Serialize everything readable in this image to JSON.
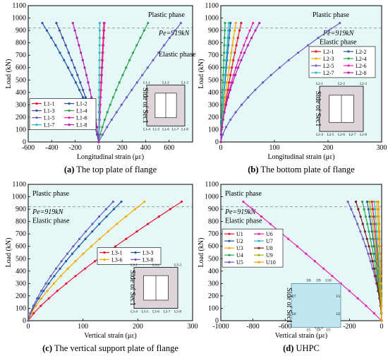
{
  "colors": {
    "L1": [
      "#e8112d",
      "#1f57a6",
      "#3a4ca0",
      "#2aa54e",
      "#6a5ac0",
      "#e81faa",
      "#29b8c0",
      "#b11fb0"
    ],
    "L2": [
      "#e8112d",
      "#1f57a6",
      "#f5a800",
      "#2aa54e",
      "#6a5ac0",
      "#e81faa",
      "#29b8c0",
      "#b11fb0"
    ],
    "L3": [
      "#e8112d",
      "#1f57a6",
      "#f5a800",
      "#6a5ac0"
    ],
    "U": [
      "#e8112d",
      "#1f57a6",
      "#f5a800",
      "#2aa54e",
      "#6a5ac0",
      "#e81faa",
      "#29b8c0",
      "#7a1f1f",
      "#a1b000",
      "#e8a000"
    ]
  },
  "chart_data": [
    {
      "type": "line",
      "panel_id": "a",
      "caption_letter": "(a)",
      "caption_text": "The top plate of flange",
      "xlabel": "Longitudinal strain (με)",
      "ylabel": "Load (kN)",
      "xlim": [
        -600,
        800
      ],
      "ylim": [
        0,
        1100
      ],
      "xticks": [
        -600,
        -400,
        -200,
        0,
        200,
        400,
        600
      ],
      "yticks": [
        0,
        100,
        200,
        300,
        400,
        500,
        600,
        700,
        800,
        900,
        1000,
        1100
      ],
      "pe_line": 919,
      "annotations": {
        "plastic": "Plastic phase",
        "pe": "Pe=919kN",
        "elastic": "Elastic phase"
      },
      "legend": [
        "L1-1",
        "L1-2",
        "L1-3",
        "L1-4",
        "L1-5",
        "L1-6",
        "L1-7",
        "L1-8"
      ],
      "inset": {
        "side_label": "Side of Sec1",
        "top_labels": [
          "L1-1",
          "L1-2",
          "L1-3"
        ],
        "bottom_labels": [
          "L1-4",
          "L1-5",
          "L1-6",
          "L1-7",
          "L1-8"
        ]
      },
      "series": [
        {
          "name": "L1-1",
          "end_x": 45
        },
        {
          "name": "L1-2",
          "end_x": -480
        },
        {
          "name": "L1-3",
          "end_x": -360
        },
        {
          "name": "L1-4",
          "end_x": 420
        },
        {
          "name": "L1-5",
          "end_x": 700
        },
        {
          "name": "L1-6",
          "end_x": 50
        },
        {
          "name": "L1-7",
          "end_x": 10
        },
        {
          "name": "L1-8",
          "end_x": -220
        }
      ]
    },
    {
      "type": "line",
      "panel_id": "b",
      "caption_letter": "(b)",
      "caption_text": "The bottom plate of flange",
      "xlabel": "Longitudinal strain (με)",
      "ylabel": "Load (kN)",
      "xlim": [
        0,
        300
      ],
      "ylim": [
        0,
        1100
      ],
      "xticks": [
        0,
        100,
        200,
        300
      ],
      "yticks": [
        0,
        100,
        200,
        300,
        400,
        500,
        600,
        700,
        800,
        900,
        1000,
        1100
      ],
      "pe_line": 919,
      "annotations": {
        "plastic": "Plastic phase",
        "pe": "Pe=919kN",
        "elastic": "Elastic phase"
      },
      "legend": [
        "L2-1",
        "L2-2",
        "L2-3",
        "L2-4",
        "L2-5",
        "L2-6",
        "L2-7",
        "L2-8"
      ],
      "inset": {
        "side_label": "Side of Sec1",
        "top_labels": [
          "L2-1",
          "L2-2",
          "L2-3"
        ],
        "bottom_labels": [
          "L2-4",
          "L2-5",
          "L2-6",
          "L2-7",
          "L2-8"
        ]
      },
      "series": [
        {
          "name": "L2-1",
          "end_x": 38
        },
        {
          "name": "L2-2",
          "end_x": 18
        },
        {
          "name": "L2-3",
          "end_x": 28
        },
        {
          "name": "L2-4",
          "end_x": 8
        },
        {
          "name": "L2-5",
          "end_x": 222
        },
        {
          "name": "L2-6",
          "end_x": 60
        },
        {
          "name": "L2-7",
          "end_x": 15
        },
        {
          "name": "L2-8",
          "end_x": 72
        }
      ]
    },
    {
      "type": "line",
      "panel_id": "c",
      "caption_letter": "(c)",
      "caption_text": "The vertical support plate of flange",
      "xlabel": "Vertical strain (με)",
      "ylabel": "Load (kN)",
      "xlim": [
        0,
        300
      ],
      "ylim": [
        0,
        1100
      ],
      "xticks": [
        0,
        100,
        200,
        300
      ],
      "yticks": [
        0,
        100,
        200,
        300,
        400,
        500,
        600,
        700,
        800,
        900,
        1000,
        1100
      ],
      "pe_line": 919,
      "annotations": {
        "plastic": "Plastic phase",
        "pe": "Pe=919kN",
        "elastic": "Elastic phase"
      },
      "legend": [
        "L3-1",
        "L3-3",
        "L3-6",
        "L3-8"
      ],
      "inset": {
        "side_label": "Side of Sec1",
        "top_labels": [
          "L3-1",
          "L3-2",
          "L3-3"
        ],
        "bottom_labels": [
          "L3-4",
          "L3-5",
          "L3-6",
          "L3-7",
          "L3-8"
        ]
      },
      "series": [
        {
          "name": "L3-1",
          "end_x": 280
        },
        {
          "name": "L3-3",
          "end_x": 170
        },
        {
          "name": "L3-6",
          "end_x": 212
        },
        {
          "name": "L3-8",
          "end_x": 155
        }
      ]
    },
    {
      "type": "line",
      "panel_id": "d",
      "caption_letter": "(d)",
      "caption_text": "UHPC",
      "xlabel": "Vertical strain (με)",
      "ylabel": "Load (kN)",
      "xlim": [
        -1000,
        0
      ],
      "ylim": [
        0,
        1100
      ],
      "xticks": [
        -1000,
        -800,
        -600,
        -400,
        -200,
        0
      ],
      "yticks": [
        0,
        100,
        200,
        300,
        400,
        500,
        600,
        700,
        800,
        900,
        1000,
        1100
      ],
      "pe_line": 919,
      "annotations": {
        "plastic": "Plastic phase",
        "pe": "Pe=919kN",
        "elastic": "Elastic phase"
      },
      "legend": [
        "U1",
        "U2",
        "U3",
        "U4",
        "U5",
        "U6",
        "U7",
        "U8",
        "U9",
        "U10"
      ],
      "inset": {
        "side_label": "Side of Sec1",
        "labels": [
          "U8",
          "U9",
          "U10",
          "U7",
          "U1",
          "U6",
          "U2",
          "U5",
          "U4",
          "U3"
        ]
      },
      "series": [
        {
          "name": "U1",
          "end_x": -60
        },
        {
          "name": "U2",
          "end_x": -90
        },
        {
          "name": "U3",
          "end_x": -30
        },
        {
          "name": "U4",
          "end_x": -120
        },
        {
          "name": "U5",
          "end_x": -210
        },
        {
          "name": "U6",
          "end_x": -860
        },
        {
          "name": "U7",
          "end_x": -45
        },
        {
          "name": "U8",
          "end_x": -160
        },
        {
          "name": "U9",
          "end_x": -75
        },
        {
          "name": "U10",
          "end_x": -20
        }
      ]
    }
  ]
}
